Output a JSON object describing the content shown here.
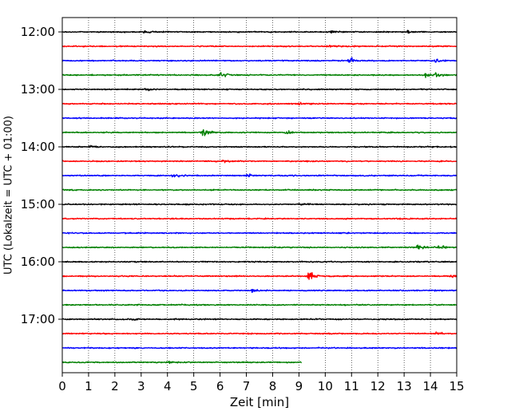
{
  "chart_data": {
    "type": "line",
    "title": "",
    "xlabel": "Zeit  [min]",
    "ylabel": "UTC (Lokalzeit = UTC + 01:00)",
    "xlim": [
      0,
      15
    ],
    "x_ticks": [
      0,
      1,
      2,
      3,
      4,
      5,
      6,
      7,
      8,
      9,
      10,
      11,
      12,
      13,
      14,
      15
    ],
    "y_tick_labels": [
      "12:00",
      "13:00",
      "14:00",
      "15:00",
      "16:00",
      "17:00"
    ],
    "grid": "vertical dotted",
    "trace_interval_minutes": 15,
    "trace_colors": [
      "#000000",
      "#ff0000",
      "#0000ff",
      "#008000"
    ],
    "traces": [
      {
        "start": "12:00",
        "color": "#000000",
        "end_min": 15,
        "events": [
          {
            "t": 3.1,
            "amp": 1.5
          },
          {
            "t": 10.2,
            "amp": 1.2
          },
          {
            "t": 13.1,
            "amp": 1.0
          }
        ]
      },
      {
        "start": "12:15",
        "color": "#ff0000",
        "end_min": 15,
        "events": [
          {
            "t": 10.1,
            "amp": 1.3
          }
        ]
      },
      {
        "start": "12:30",
        "color": "#0000ff",
        "end_min": 15,
        "events": [
          {
            "t": 10.9,
            "amp": 3.0
          },
          {
            "t": 14.2,
            "amp": 1.5
          }
        ]
      },
      {
        "start": "12:45",
        "color": "#008000",
        "end_min": 15,
        "events": [
          {
            "t": 6.0,
            "amp": 3.5
          },
          {
            "t": 13.8,
            "amp": 2.0
          },
          {
            "t": 14.2,
            "amp": 2.0
          }
        ]
      },
      {
        "start": "13:00",
        "color": "#000000",
        "end_min": 15,
        "events": [
          {
            "t": 3.1,
            "amp": 1.5
          }
        ]
      },
      {
        "start": "13:15",
        "color": "#ff0000",
        "end_min": 15,
        "events": [
          {
            "t": 9.0,
            "amp": 1.2
          }
        ]
      },
      {
        "start": "13:30",
        "color": "#0000ff",
        "end_min": 15,
        "events": []
      },
      {
        "start": "13:45",
        "color": "#008000",
        "end_min": 15,
        "events": [
          {
            "t": 5.3,
            "amp": 4.5
          },
          {
            "t": 8.5,
            "amp": 1.3
          }
        ]
      },
      {
        "start": "14:00",
        "color": "#000000",
        "end_min": 15,
        "events": [
          {
            "t": 1.0,
            "amp": 1.2
          }
        ]
      },
      {
        "start": "14:15",
        "color": "#ff0000",
        "end_min": 15,
        "events": [
          {
            "t": 6.1,
            "amp": 1.0
          }
        ]
      },
      {
        "start": "14:30",
        "color": "#0000ff",
        "end_min": 15,
        "events": [
          {
            "t": 4.2,
            "amp": 2.5
          },
          {
            "t": 7.0,
            "amp": 1.2
          }
        ]
      },
      {
        "start": "14:45",
        "color": "#008000",
        "end_min": 15,
        "events": []
      },
      {
        "start": "15:00",
        "color": "#000000",
        "end_min": 15,
        "events": [
          {
            "t": 9.0,
            "amp": 1.0
          }
        ]
      },
      {
        "start": "15:15",
        "color": "#ff0000",
        "end_min": 15,
        "events": []
      },
      {
        "start": "15:30",
        "color": "#0000ff",
        "end_min": 15,
        "events": []
      },
      {
        "start": "15:45",
        "color": "#008000",
        "end_min": 15,
        "events": [
          {
            "t": 13.5,
            "amp": 2.2
          },
          {
            "t": 14.3,
            "amp": 2.2
          }
        ]
      },
      {
        "start": "16:00",
        "color": "#000000",
        "end_min": 15,
        "events": []
      },
      {
        "start": "16:15",
        "color": "#ff0000",
        "end_min": 15,
        "events": [
          {
            "t": 9.35,
            "amp": 5.0
          },
          {
            "t": 14.8,
            "amp": 1.5
          }
        ]
      },
      {
        "start": "16:30",
        "color": "#0000ff",
        "end_min": 15,
        "events": [
          {
            "t": 7.2,
            "amp": 1.5
          }
        ]
      },
      {
        "start": "16:45",
        "color": "#008000",
        "end_min": 15,
        "events": []
      },
      {
        "start": "17:00",
        "color": "#000000",
        "end_min": 15,
        "events": [
          {
            "t": 2.6,
            "amp": 1.0
          }
        ]
      },
      {
        "start": "17:15",
        "color": "#ff0000",
        "end_min": 15,
        "events": [
          {
            "t": 14.2,
            "amp": 1.3
          }
        ]
      },
      {
        "start": "17:30",
        "color": "#0000ff",
        "end_min": 15,
        "events": []
      },
      {
        "start": "17:45",
        "color": "#008000",
        "end_min": 9.1,
        "events": [
          {
            "t": 4.0,
            "amp": 1.0
          }
        ]
      }
    ]
  }
}
